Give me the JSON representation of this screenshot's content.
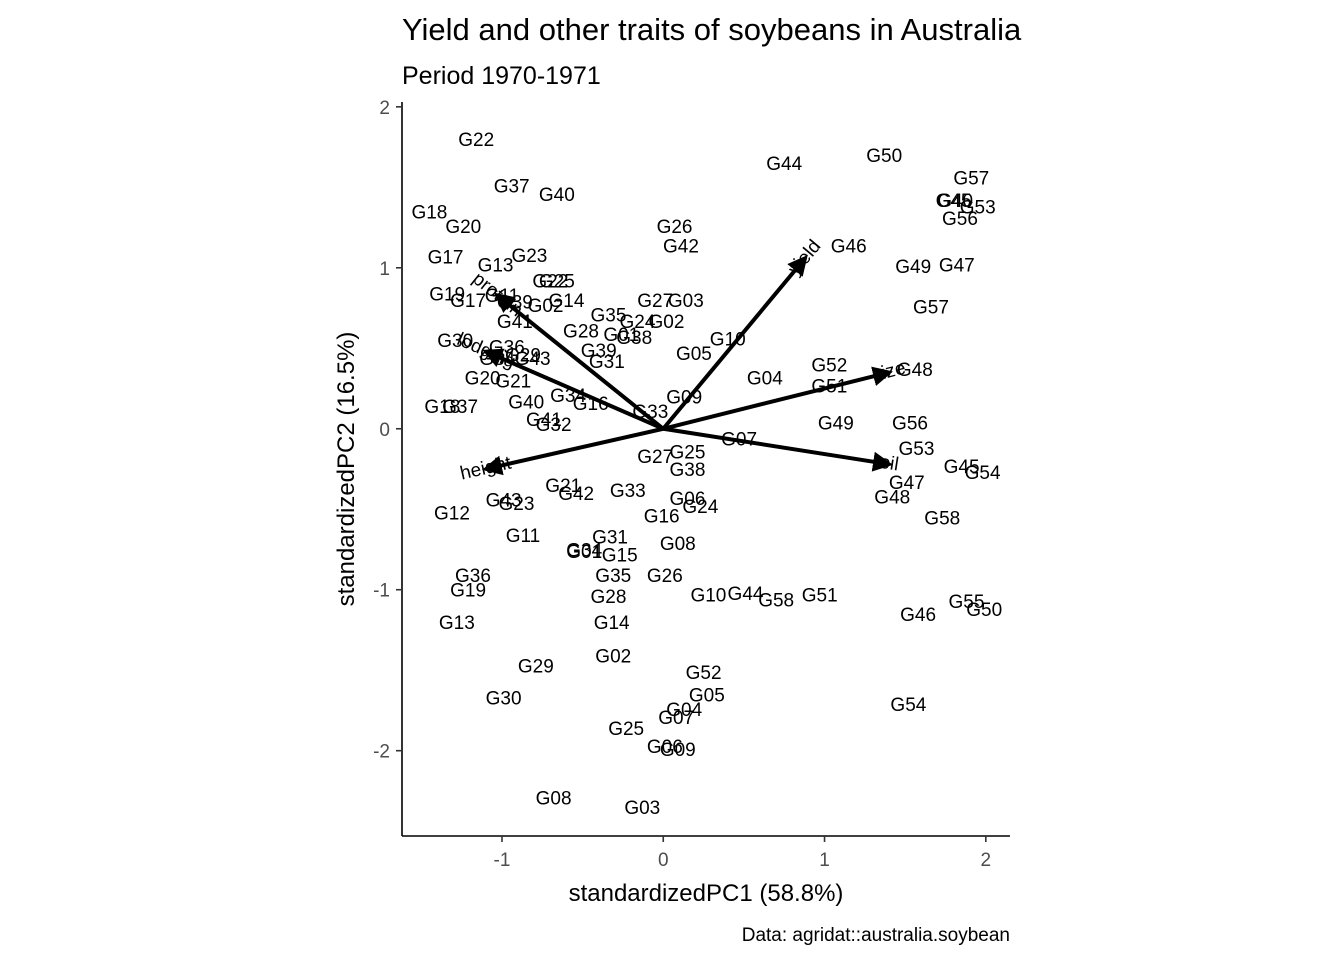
{
  "chart_data": {
    "type": "scatter",
    "title": "Yield and other traits of soybeans in Australia",
    "subtitle": "Period 1970-1971",
    "xlabel": "standardizedPC1 (58.8%)",
    "ylabel": "standardizedPC2 (16.5%)",
    "caption": "Data: agridat::australia.soybean",
    "xlim": [
      -1.62,
      2.15
    ],
    "ylim": [
      -2.53,
      2.03
    ],
    "x_ticks": [
      -1,
      0,
      1,
      2
    ],
    "y_ticks": [
      -2,
      -1,
      0,
      1,
      2
    ],
    "grid": false,
    "points": [
      {
        "label": "G22",
        "x": -1.16,
        "y": 1.8
      },
      {
        "label": "G44",
        "x": 0.75,
        "y": 1.65
      },
      {
        "label": "G50",
        "x": 1.37,
        "y": 1.7
      },
      {
        "label": "G57",
        "x": 1.91,
        "y": 1.56
      },
      {
        "label": "G37",
        "x": -0.94,
        "y": 1.51
      },
      {
        "label": "G40",
        "x": -0.66,
        "y": 1.46
      },
      {
        "label": "G45",
        "x": 1.8,
        "y": 1.42
      },
      {
        "label": "G40",
        "x": 1.81,
        "y": 1.42
      },
      {
        "label": "G53",
        "x": 1.95,
        "y": 1.38
      },
      {
        "label": "G56",
        "x": 1.84,
        "y": 1.31
      },
      {
        "label": "G18",
        "x": -1.45,
        "y": 1.35
      },
      {
        "label": "G20",
        "x": -1.24,
        "y": 1.26
      },
      {
        "label": "G26",
        "x": 0.07,
        "y": 1.26
      },
      {
        "label": "G42",
        "x": 0.11,
        "y": 1.14
      },
      {
        "label": "G46",
        "x": 1.15,
        "y": 1.14
      },
      {
        "label": "G17",
        "x": -1.35,
        "y": 1.07
      },
      {
        "label": "G23",
        "x": -0.83,
        "y": 1.08
      },
      {
        "label": "G13",
        "x": -1.04,
        "y": 1.02
      },
      {
        "label": "G49",
        "x": 1.55,
        "y": 1.01
      },
      {
        "label": "G47",
        "x": 1.82,
        "y": 1.02
      },
      {
        "label": "G22",
        "x": -0.7,
        "y": 0.92
      },
      {
        "label": "G25",
        "x": -0.66,
        "y": 0.92
      },
      {
        "label": "G19",
        "x": -1.34,
        "y": 0.84
      },
      {
        "label": "G11",
        "x": -1.0,
        "y": 0.83
      },
      {
        "label": "G17",
        "x": -1.21,
        "y": 0.8
      },
      {
        "label": "G39",
        "x": -0.92,
        "y": 0.79
      },
      {
        "label": "G02",
        "x": -0.73,
        "y": 0.77
      },
      {
        "label": "G14",
        "x": -0.6,
        "y": 0.8
      },
      {
        "label": "G27",
        "x": -0.05,
        "y": 0.8
      },
      {
        "label": "G03",
        "x": 0.14,
        "y": 0.8
      },
      {
        "label": "G57",
        "x": 1.66,
        "y": 0.76
      },
      {
        "label": "G35",
        "x": -0.34,
        "y": 0.71
      },
      {
        "label": "G24",
        "x": -0.16,
        "y": 0.67
      },
      {
        "label": "G02",
        "x": 0.02,
        "y": 0.67
      },
      {
        "label": "G41",
        "x": -0.92,
        "y": 0.67
      },
      {
        "label": "G28",
        "x": -0.51,
        "y": 0.61
      },
      {
        "label": "G01",
        "x": -0.26,
        "y": 0.59
      },
      {
        "label": "G38",
        "x": -0.18,
        "y": 0.57
      },
      {
        "label": "G10",
        "x": 0.4,
        "y": 0.56
      },
      {
        "label": "G30",
        "x": -1.29,
        "y": 0.55
      },
      {
        "label": "G36",
        "x": -0.97,
        "y": 0.51
      },
      {
        "label": "G39",
        "x": -0.4,
        "y": 0.49
      },
      {
        "label": "G05",
        "x": 0.19,
        "y": 0.47
      },
      {
        "label": "G29",
        "x": -0.87,
        "y": 0.46
      },
      {
        "label": "G34",
        "x": -1.03,
        "y": 0.44
      },
      {
        "label": "G43",
        "x": -0.81,
        "y": 0.44
      },
      {
        "label": "G31",
        "x": -0.35,
        "y": 0.42
      },
      {
        "label": "G52",
        "x": 1.03,
        "y": 0.4
      },
      {
        "label": "G48",
        "x": 1.56,
        "y": 0.37
      },
      {
        "label": "G04",
        "x": 0.63,
        "y": 0.32
      },
      {
        "label": "G20",
        "x": -1.12,
        "y": 0.32
      },
      {
        "label": "G21",
        "x": -0.93,
        "y": 0.3
      },
      {
        "label": "G51",
        "x": 1.03,
        "y": 0.27
      },
      {
        "label": "G34",
        "x": -0.59,
        "y": 0.21
      },
      {
        "label": "G09",
        "x": 0.13,
        "y": 0.2
      },
      {
        "label": "G40",
        "x": -0.85,
        "y": 0.17
      },
      {
        "label": "G16",
        "x": -0.45,
        "y": 0.16
      },
      {
        "label": "G18",
        "x": -1.37,
        "y": 0.14
      },
      {
        "label": "G37",
        "x": -1.26,
        "y": 0.14
      },
      {
        "label": "G33",
        "x": -0.08,
        "y": 0.11
      },
      {
        "label": "G41",
        "x": -0.74,
        "y": 0.06
      },
      {
        "label": "G32",
        "x": -0.68,
        "y": 0.03
      },
      {
        "label": "G49",
        "x": 1.07,
        "y": 0.04
      },
      {
        "label": "G56",
        "x": 1.53,
        "y": 0.04
      },
      {
        "label": "G07",
        "x": 0.47,
        "y": -0.06
      },
      {
        "label": "G53",
        "x": 1.57,
        "y": -0.12
      },
      {
        "label": "G25",
        "x": 0.15,
        "y": -0.14
      },
      {
        "label": "G27",
        "x": -0.05,
        "y": -0.17
      },
      {
        "label": "G45",
        "x": 1.85,
        "y": -0.23
      },
      {
        "label": "G54",
        "x": 1.98,
        "y": -0.27
      },
      {
        "label": "G38",
        "x": 0.15,
        "y": -0.25
      },
      {
        "label": "G47",
        "x": 1.51,
        "y": -0.33
      },
      {
        "label": "G21",
        "x": -0.62,
        "y": -0.35
      },
      {
        "label": "G33",
        "x": -0.22,
        "y": -0.38
      },
      {
        "label": "G42",
        "x": -0.54,
        "y": -0.4
      },
      {
        "label": "G48",
        "x": 1.42,
        "y": -0.42
      },
      {
        "label": "G43",
        "x": -0.99,
        "y": -0.44
      },
      {
        "label": "G23",
        "x": -0.91,
        "y": -0.46
      },
      {
        "label": "G06",
        "x": 0.15,
        "y": -0.43
      },
      {
        "label": "G24",
        "x": 0.23,
        "y": -0.48
      },
      {
        "label": "G16",
        "x": -0.01,
        "y": -0.54
      },
      {
        "label": "G12",
        "x": -1.31,
        "y": -0.52
      },
      {
        "label": "G58",
        "x": 1.73,
        "y": -0.55
      },
      {
        "label": "G11",
        "x": -0.87,
        "y": -0.66
      },
      {
        "label": "G31",
        "x": -0.33,
        "y": -0.67
      },
      {
        "label": "G08",
        "x": 0.09,
        "y": -0.71
      },
      {
        "label": "G34",
        "x": -0.49,
        "y": -0.75
      },
      {
        "label": "G01",
        "x": -0.49,
        "y": -0.76
      },
      {
        "label": "G15",
        "x": -0.27,
        "y": -0.78
      },
      {
        "label": "G36",
        "x": -1.18,
        "y": -0.91
      },
      {
        "label": "G35",
        "x": -0.31,
        "y": -0.91
      },
      {
        "label": "G26",
        "x": 0.01,
        "y": -0.91
      },
      {
        "label": "G19",
        "x": -1.21,
        "y": -1.0
      },
      {
        "label": "G10",
        "x": 0.28,
        "y": -1.03
      },
      {
        "label": "G44",
        "x": 0.51,
        "y": -1.02
      },
      {
        "label": "G58",
        "x": 0.7,
        "y": -1.06
      },
      {
        "label": "G51",
        "x": 0.97,
        "y": -1.03
      },
      {
        "label": "G28",
        "x": -0.34,
        "y": -1.04
      },
      {
        "label": "G55",
        "x": 1.88,
        "y": -1.07
      },
      {
        "label": "G50",
        "x": 1.99,
        "y": -1.12
      },
      {
        "label": "G46",
        "x": 1.58,
        "y": -1.15
      },
      {
        "label": "G13",
        "x": -1.28,
        "y": -1.2
      },
      {
        "label": "G14",
        "x": -0.32,
        "y": -1.2
      },
      {
        "label": "G02",
        "x": -0.31,
        "y": -1.41
      },
      {
        "label": "G29",
        "x": -0.79,
        "y": -1.47
      },
      {
        "label": "G52",
        "x": 0.25,
        "y": -1.51
      },
      {
        "label": "G05",
        "x": 0.27,
        "y": -1.65
      },
      {
        "label": "G30",
        "x": -0.99,
        "y": -1.67
      },
      {
        "label": "G54",
        "x": 1.52,
        "y": -1.71
      },
      {
        "label": "G04",
        "x": 0.13,
        "y": -1.74
      },
      {
        "label": "G07",
        "x": 0.08,
        "y": -1.79
      },
      {
        "label": "G25",
        "x": -0.23,
        "y": -1.86
      },
      {
        "label": "G06",
        "x": 0.01,
        "y": -1.97
      },
      {
        "label": "G09",
        "x": 0.09,
        "y": -1.99
      },
      {
        "label": "G08",
        "x": -0.68,
        "y": -2.29
      },
      {
        "label": "G03",
        "x": -0.13,
        "y": -2.35
      }
    ],
    "arrows": [
      {
        "label": "yield",
        "x": 0.88,
        "y": 1.06
      },
      {
        "label": "protein",
        "x": -1.03,
        "y": 0.83
      },
      {
        "label": "lodging",
        "x": -1.1,
        "y": 0.48
      },
      {
        "label": "size",
        "x": 1.4,
        "y": 0.35
      },
      {
        "label": "height",
        "x": -1.1,
        "y": -0.25
      },
      {
        "label": "oil",
        "x": 1.4,
        "y": -0.22
      }
    ]
  }
}
